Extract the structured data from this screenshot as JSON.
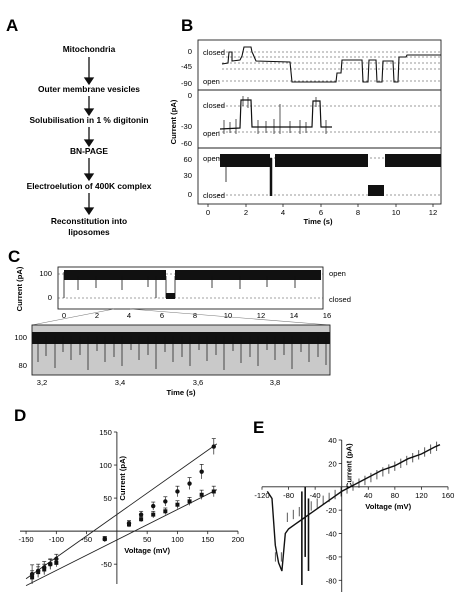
{
  "panels": {
    "A": "A",
    "B": "B",
    "C": "C",
    "D": "D",
    "E": "E"
  },
  "flowchart": [
    "Mitochondria",
    "Outer membrane vesicles",
    "Solubilisation in 1 % digitonin",
    "BN-PAGE",
    "Electroelution of 400K complex",
    "Reconstitution into",
    "liposomes"
  ],
  "states": {
    "open": "open",
    "closed": "closed"
  },
  "panel_b": {
    "ylabel": "Current (pA)",
    "xlabel": "Time (s)",
    "xticks": [
      "0",
      "2",
      "4",
      "6",
      "8",
      "10",
      "12"
    ],
    "trace1_yticks": [
      "0",
      "-45",
      "-90"
    ],
    "trace2_yticks": [
      "0",
      "-30",
      "-60"
    ],
    "trace3_yticks": [
      "60",
      "30",
      "0"
    ]
  },
  "panel_c": {
    "ylabel": "Current (pA)",
    "xlabel": "Time (s)",
    "top_yticks": [
      "100",
      "0"
    ],
    "top_xticks": [
      "0",
      "2",
      "4",
      "6",
      "8",
      "10",
      "12",
      "14",
      "16"
    ],
    "zoom_yticks": [
      "100",
      "80"
    ],
    "zoom_xticks": [
      "3,2",
      "3,4",
      "3,6",
      "3,8"
    ]
  },
  "chart_data": [
    {
      "type": "scatter",
      "panel": "D",
      "xlabel": "Voltage (mV)",
      "ylabel": "Current (pA)",
      "xlim": [
        -160,
        200
      ],
      "ylim": [
        -80,
        150
      ],
      "xticks": [
        "-150",
        "-100",
        "-50",
        "50",
        "100",
        "150",
        "200"
      ],
      "yticks": [
        "150",
        "100",
        "50",
        "-50"
      ],
      "series": [
        {
          "x": [
            -140,
            -130,
            -120,
            -110,
            -100,
            -20,
            20,
            40,
            60,
            80,
            100,
            120,
            140,
            160
          ],
          "y": [
            -65,
            -60,
            -55,
            -50,
            -42,
            -12,
            12,
            25,
            38,
            45,
            60,
            72,
            90,
            128
          ],
          "err": [
            14,
            10,
            9,
            8,
            7,
            4,
            4,
            5,
            6,
            7,
            8,
            9,
            11,
            12
          ]
        },
        {
          "x": [
            -140,
            -130,
            -120,
            -110,
            -100,
            -20,
            20,
            40,
            60,
            80,
            100,
            120,
            140,
            160
          ],
          "y": [
            -70,
            -62,
            -58,
            -50,
            -48,
            -12,
            10,
            18,
            25,
            30,
            40,
            45,
            55,
            60
          ],
          "err": [
            10,
            8,
            8,
            7,
            6,
            4,
            4,
            4,
            5,
            5,
            6,
            6,
            7,
            8
          ]
        }
      ]
    },
    {
      "type": "line",
      "panel": "E",
      "xlabel": "Voltage (mV)",
      "ylabel": "Current (pA)",
      "xlim": [
        -120,
        160
      ],
      "ylim": [
        -90,
        40
      ],
      "xticks": [
        "-120",
        "-80",
        "-40",
        "40",
        "80",
        "120",
        "160"
      ],
      "yticks": [
        "40",
        "20",
        "-20",
        "-40",
        "-60",
        "-80"
      ]
    }
  ]
}
